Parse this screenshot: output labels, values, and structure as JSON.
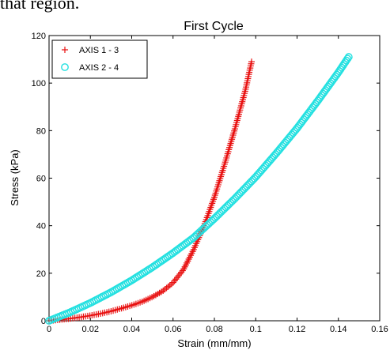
{
  "page": {
    "top_text": "that region."
  },
  "chart_data": {
    "type": "scatter",
    "title": "First Cycle",
    "xlabel": "Strain (mm/mm)",
    "ylabel": "Stress (kPa)",
    "xlim": [
      0,
      0.16
    ],
    "ylim": [
      0,
      120
    ],
    "x_ticks": [
      "0",
      "0.02",
      "0.04",
      "0.06",
      "0.08",
      "0.1",
      "0.12",
      "0.14",
      "0.16"
    ],
    "y_ticks": [
      "0",
      "20",
      "40",
      "60",
      "80",
      "100",
      "120"
    ],
    "legend_position": "top-left",
    "grid": false,
    "series": [
      {
        "name": "AXIS 1 - 3",
        "marker": "plus",
        "color": "#e81010",
        "x": [
          0.0,
          0.005,
          0.01,
          0.015,
          0.02,
          0.025,
          0.03,
          0.035,
          0.04,
          0.045,
          0.05,
          0.055,
          0.06,
          0.065,
          0.07,
          0.075,
          0.08,
          0.085,
          0.09,
          0.095,
          0.098
        ],
        "y": [
          0,
          0.4,
          0.9,
          1.5,
          2.2,
          3.0,
          4.0,
          5.2,
          6.5,
          8.0,
          10.0,
          12.5,
          16.0,
          21.5,
          30.0,
          40.0,
          52.0,
          66.0,
          81.0,
          97.0,
          109.0
        ]
      },
      {
        "name": "AXIS 2 - 4",
        "marker": "circle",
        "color": "#22e0e0",
        "x": [
          0.0,
          0.01,
          0.02,
          0.03,
          0.04,
          0.05,
          0.06,
          0.07,
          0.08,
          0.09,
          0.1,
          0.11,
          0.12,
          0.13,
          0.14,
          0.145
        ],
        "y": [
          0,
          3.5,
          7.5,
          12.0,
          17.0,
          22.5,
          28.5,
          35.0,
          43.0,
          51.5,
          60.5,
          70.5,
          81.0,
          92.5,
          104.5,
          111.0
        ]
      }
    ]
  }
}
